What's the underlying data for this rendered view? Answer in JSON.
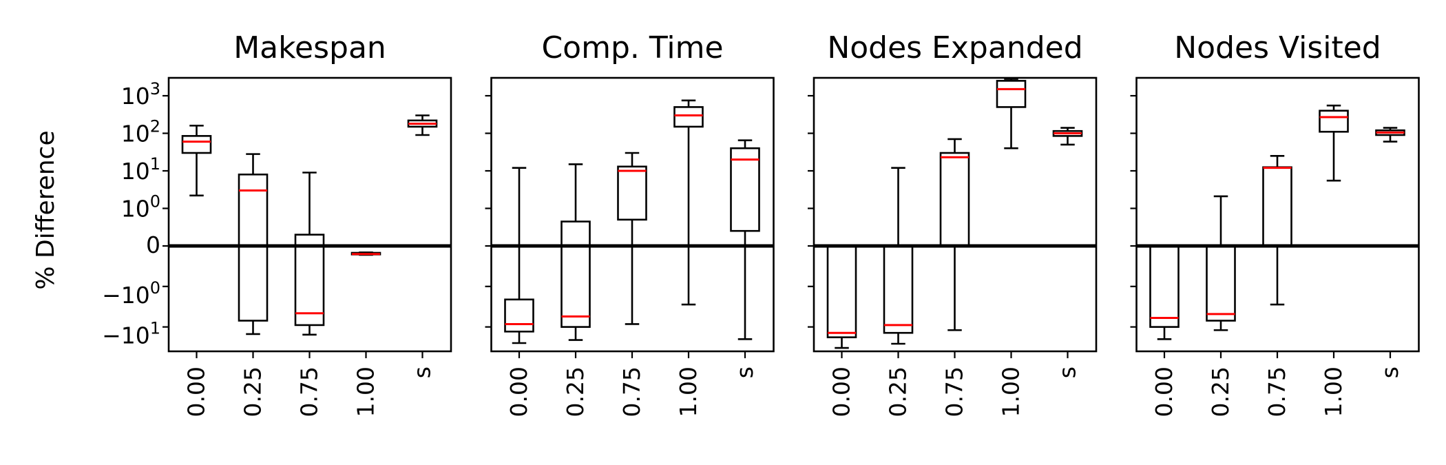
{
  "figure": {
    "ylabel": "% Difference"
  },
  "colors": {
    "box": "#000000",
    "median": "#ff0000",
    "zero_line": "#000000"
  },
  "chart_data": [
    {
      "type": "box",
      "title": "Makespan",
      "yscale": "symlog",
      "ylim": [
        -40,
        3000
      ],
      "yticks": [
        "10^3",
        "10^2",
        "10^1",
        "10^0",
        "0",
        "-10^0",
        "-10^1"
      ],
      "categories": [
        "0.00",
        "0.25",
        "0.75",
        "1.00",
        "s"
      ],
      "boxes": [
        {
          "whislo": 2.2,
          "q1": 30,
          "med": 60,
          "q3": 85,
          "whishi": 160
        },
        {
          "whislo": -15,
          "q1": -7,
          "med": 3,
          "q3": 8,
          "whishi": 28
        },
        {
          "whislo": -15.5,
          "q1": -9,
          "med": -4.6,
          "q3": 0.3,
          "whishi": 9
        },
        {
          "whislo": -0.22,
          "q1": -0.21,
          "med": -0.2,
          "q3": -0.17,
          "whishi": -0.16
        },
        {
          "whislo": 90,
          "q1": 150,
          "med": 180,
          "q3": 220,
          "whishi": 300
        }
      ]
    },
    {
      "type": "box",
      "title": "Comp. Time",
      "yscale": "symlog",
      "ylim": [
        -40,
        3000
      ],
      "categories": [
        "0.00",
        "0.25",
        "0.75",
        "1.00",
        "s"
      ],
      "boxes": [
        {
          "whislo": -25,
          "q1": -13,
          "med": -8.5,
          "q3": -2.1,
          "whishi": 12
        },
        {
          "whislo": -21,
          "q1": -10,
          "med": -5.5,
          "q3": 0.65,
          "whishi": 15
        },
        {
          "whislo": -8.5,
          "q1": 0.7,
          "med": 10,
          "q3": 13,
          "whishi": 30
        },
        {
          "whislo": -2.8,
          "q1": 150,
          "med": 300,
          "q3": 500,
          "whishi": 750
        },
        {
          "whislo": -20,
          "q1": 0.4,
          "med": 20,
          "q3": 40,
          "whishi": 65
        }
      ]
    },
    {
      "type": "box",
      "title": "Nodes Expanded",
      "yscale": "symlog",
      "ylim": [
        -40,
        3000
      ],
      "categories": [
        "0.00",
        "0.25",
        "0.75",
        "1.00",
        "s"
      ],
      "boxes": [
        {
          "whislo": -33,
          "q1": -18,
          "med": -14,
          "q3": 0,
          "whishi": 0
        },
        {
          "whislo": -26,
          "q1": -14,
          "med": -9,
          "q3": 0,
          "whishi": 12
        },
        {
          "whislo": -12,
          "q1": 0,
          "med": 23,
          "q3": 30,
          "whishi": 70
        },
        {
          "whislo": 40,
          "q1": 500,
          "med": 1500,
          "q3": 2500,
          "whishi": 2800
        },
        {
          "whislo": 50,
          "q1": 85,
          "med": 100,
          "q3": 115,
          "whishi": 140
        }
      ]
    },
    {
      "type": "box",
      "title": "Nodes Visited",
      "yscale": "symlog",
      "ylim": [
        -40,
        3000
      ],
      "categories": [
        "0.00",
        "0.25",
        "0.75",
        "1.00",
        "s"
      ],
      "boxes": [
        {
          "whislo": -20,
          "q1": -10,
          "med": -6,
          "q3": 0,
          "whishi": 0
        },
        {
          "whislo": -12,
          "q1": -7,
          "med": -4.8,
          "q3": 0,
          "whishi": 2.1
        },
        {
          "whislo": -2.8,
          "q1": 0,
          "med": 12,
          "q3": 12.5,
          "whishi": 25
        },
        {
          "whislo": 5.5,
          "q1": 110,
          "med": 270,
          "q3": 400,
          "whishi": 550
        },
        {
          "whislo": 60,
          "q1": 90,
          "med": 105,
          "q3": 120,
          "whishi": 140
        }
      ]
    }
  ]
}
